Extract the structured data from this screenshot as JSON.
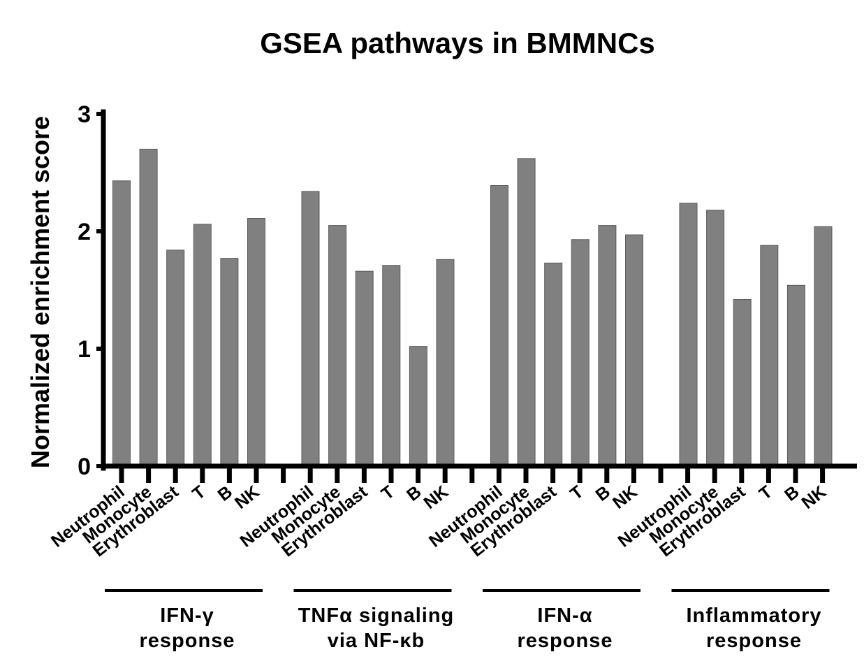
{
  "chart_data": {
    "type": "bar",
    "title": "GSEA pathways in BMMNCs",
    "xlabel": "",
    "ylabel": "Normalized enrichment score",
    "ylim": [
      0,
      3
    ],
    "yticks": [
      "0",
      "1",
      "2",
      "3"
    ],
    "grid": false,
    "legend": "none",
    "bar_color": "#808080",
    "groups": [
      {
        "label_lines": [
          "IFN-γ",
          "response"
        ],
        "categories": [
          "Neutrophil",
          "Monocyte",
          "Erythroblast",
          "T",
          "B",
          "NK"
        ],
        "values": [
          2.43,
          2.7,
          1.84,
          2.06,
          1.77,
          2.11
        ]
      },
      {
        "label_lines": [
          "TNFα signaling",
          "via NF-κb"
        ],
        "categories": [
          "Neutrophil",
          "Monocyte",
          "Erythroblast",
          "T",
          "B",
          "NK"
        ],
        "values": [
          2.34,
          2.05,
          1.66,
          1.71,
          1.02,
          1.76
        ]
      },
      {
        "label_lines": [
          "IFN-α",
          "response"
        ],
        "categories": [
          "Neutrophil",
          "Monocyte",
          "Erythroblast",
          "T",
          "B",
          "NK"
        ],
        "values": [
          2.39,
          2.62,
          1.73,
          1.93,
          2.05,
          1.97
        ]
      },
      {
        "label_lines": [
          "Inflammatory",
          "response"
        ],
        "categories": [
          "Neutrophil",
          "Monocyte",
          "Erythroblast",
          "T",
          "B",
          "NK"
        ],
        "values": [
          2.24,
          2.18,
          1.42,
          1.88,
          1.54,
          2.04
        ]
      }
    ]
  }
}
